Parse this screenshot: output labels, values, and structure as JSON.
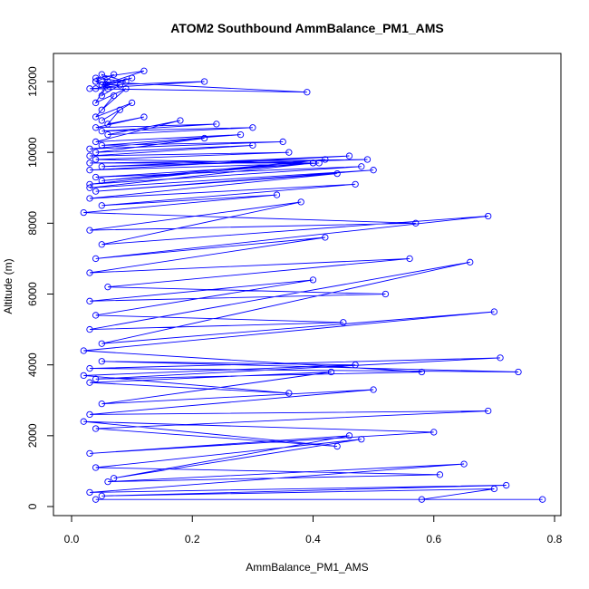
{
  "chart_data": {
    "type": "line",
    "title": "ATOM2 Southbound AmmBalance_PM1_AMS",
    "xlabel": "AmmBalance_PM1_AMS",
    "ylabel": "Altitude (m)",
    "xlim": [
      0,
      0.8
    ],
    "ylim": [
      0,
      12000
    ],
    "x_ticks": [
      "0.0",
      "0.2",
      "0.4",
      "0.6",
      "0.8"
    ],
    "x_tick_values": [
      0.0,
      0.2,
      0.4,
      0.6,
      0.8
    ],
    "y_ticks": [
      "0",
      "2000",
      "4000",
      "6000",
      "8000",
      "10000",
      "12000"
    ],
    "y_tick_values": [
      0,
      2000,
      4000,
      6000,
      8000,
      10000,
      12000
    ],
    "grid": false,
    "legend": "none",
    "series_color": "#0000ff",
    "marker": "open-circle",
    "series": [
      {
        "x": [
          0.04,
          0.78,
          0.58,
          0.7,
          0.05,
          0.72,
          0.03,
          0.65,
          0.06,
          0.61,
          0.04,
          0.48,
          0.07,
          0.46,
          0.03,
          0.6,
          0.02,
          0.44,
          0.04,
          0.69,
          0.03,
          0.5,
          0.05,
          0.43,
          0.03,
          0.36,
          0.02,
          0.47,
          0.05,
          0.74,
          0.03,
          0.71,
          0.04,
          0.58,
          0.02,
          0.7,
          0.05,
          0.66,
          0.03,
          0.45,
          0.04,
          0.4,
          0.03,
          0.52,
          0.06,
          0.56,
          0.03,
          0.42,
          0.04,
          0.69,
          0.05,
          0.38,
          0.03,
          0.57,
          0.02,
          0.34,
          0.05,
          0.47,
          0.03,
          0.44,
          0.04,
          0.5,
          0.03,
          0.4,
          0.05,
          0.42,
          0.03,
          0.48,
          0.04,
          0.41,
          0.03,
          0.46,
          0.05,
          0.49,
          0.03,
          0.4,
          0.04,
          0.36,
          0.03,
          0.3,
          0.04,
          0.22,
          0.03,
          0.35,
          0.05,
          0.28,
          0.04,
          0.18,
          0.06,
          0.3,
          0.05,
          0.24,
          0.04,
          0.12,
          0.06,
          0.08,
          0.05,
          0.1,
          0.04,
          0.07,
          0.05,
          0.09,
          0.04,
          0.06,
          0.05,
          0.08,
          0.04,
          0.1,
          0.05,
          0.07,
          0.04,
          0.39,
          0.03,
          0.22,
          0.05,
          0.12,
          0.04,
          0.09,
          0.05,
          0.06,
          0.04
        ],
        "y": [
          200,
          200,
          200,
          500,
          300,
          600,
          400,
          1200,
          700,
          900,
          1100,
          1900,
          800,
          2000,
          1500,
          2100,
          2400,
          1700,
          2200,
          2700,
          2600,
          3300,
          2900,
          3800,
          3500,
          3200,
          3700,
          4000,
          4100,
          3800,
          3900,
          4200,
          3600,
          3800,
          4400,
          5500,
          4600,
          6900,
          5000,
          5200,
          5400,
          6400,
          5800,
          6000,
          6200,
          7000,
          6600,
          7600,
          7000,
          8200,
          7400,
          8600,
          7800,
          8000,
          8300,
          8800,
          8500,
          9100,
          8700,
          9400,
          8900,
          9500,
          9000,
          9700,
          9200,
          9800,
          9100,
          9600,
          9300,
          9700,
          9500,
          9900,
          9600,
          9800,
          9700,
          9700,
          9800,
          10000,
          9900,
          10200,
          10000,
          10400,
          10100,
          10300,
          10200,
          10500,
          10300,
          10900,
          10500,
          10700,
          10600,
          10800,
          10700,
          11000,
          10800,
          11200,
          10900,
          11400,
          11000,
          11600,
          11200,
          11800,
          11400,
          12000,
          11600,
          11900,
          11800,
          12100,
          11900,
          12200,
          12000,
          11700,
          11800,
          12000,
          11900,
          12300,
          12100,
          12000,
          12200,
          11800,
          12000
        ]
      }
    ]
  }
}
